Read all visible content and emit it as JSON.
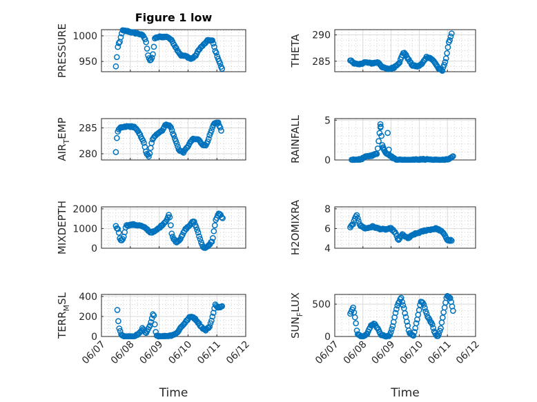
{
  "chart_data": [
    {
      "id": "pressure",
      "type": "scatter",
      "title": "Figure 1 low",
      "ylabel": "PRESSURE",
      "yticks": [
        950,
        1000
      ],
      "ylim": [
        930,
        1012
      ],
      "xticks": [],
      "x_start": "06/07",
      "x_end": "06/12",
      "anchors": [
        [
          7.5,
          940
        ],
        [
          7.58,
          985
        ],
        [
          7.62,
          984
        ],
        [
          7.72,
          1010
        ],
        [
          7.9,
          1009
        ],
        [
          8.1,
          1006
        ],
        [
          8.3,
          1004
        ],
        [
          8.45,
          1000
        ],
        [
          8.55,
          988
        ],
        [
          8.62,
          960
        ],
        [
          8.7,
          950
        ],
        [
          8.78,
          962
        ],
        [
          8.85,
          995
        ],
        [
          9.0,
          998
        ],
        [
          9.3,
          998
        ],
        [
          9.45,
          990
        ],
        [
          9.6,
          975
        ],
        [
          9.75,
          962
        ],
        [
          9.95,
          960
        ],
        [
          10.1,
          955
        ],
        [
          10.25,
          960
        ],
        [
          10.4,
          975
        ],
        [
          10.55,
          983
        ],
        [
          10.7,
          992
        ],
        [
          10.85,
          990
        ],
        [
          10.95,
          970
        ],
        [
          11.05,
          955
        ],
        [
          11.18,
          935
        ]
      ]
    },
    {
      "id": "theta",
      "type": "scatter",
      "title": "",
      "ylabel": "THETA",
      "yticks": [
        285,
        290
      ],
      "ylim": [
        283,
        291
      ],
      "xticks": [],
      "x_start": "06/07",
      "x_end": "06/12",
      "anchors": [
        [
          7.55,
          285.2
        ],
        [
          7.7,
          284.6
        ],
        [
          7.85,
          284.3
        ],
        [
          8.05,
          284.8
        ],
        [
          8.3,
          284.6
        ],
        [
          8.55,
          284.8
        ],
        [
          8.7,
          283.8
        ],
        [
          8.9,
          283.5
        ],
        [
          9.1,
          283.8
        ],
        [
          9.3,
          284.8
        ],
        [
          9.45,
          286.8
        ],
        [
          9.6,
          285.5
        ],
        [
          9.75,
          284.2
        ],
        [
          9.95,
          284.0
        ],
        [
          10.1,
          284.5
        ],
        [
          10.25,
          285.8
        ],
        [
          10.4,
          285.6
        ],
        [
          10.55,
          284.8
        ],
        [
          10.7,
          283.5
        ],
        [
          10.82,
          283.2
        ],
        [
          10.95,
          285.5
        ],
        [
          11.05,
          288.5
        ],
        [
          11.15,
          290.3
        ]
      ]
    },
    {
      "id": "air_temp",
      "type": "scatter",
      "title": "",
      "ylabel": "AIR",
      "ylabel_sub": "T",
      "ylabel_post": "EMP",
      "yticks": [
        280,
        285
      ],
      "ylim": [
        278.8,
        286.8
      ],
      "xticks": [],
      "x_start": "06/07",
      "x_end": "06/12",
      "anchors": [
        [
          7.5,
          280.4
        ],
        [
          7.55,
          284.2
        ],
        [
          7.65,
          285.0
        ],
        [
          7.9,
          285.3
        ],
        [
          8.15,
          285.2
        ],
        [
          8.3,
          284.0
        ],
        [
          8.45,
          282.5
        ],
        [
          8.55,
          280.2
        ],
        [
          8.65,
          279.3
        ],
        [
          8.75,
          282.5
        ],
        [
          8.9,
          283.8
        ],
        [
          9.1,
          284.5
        ],
        [
          9.25,
          285.8
        ],
        [
          9.4,
          285.2
        ],
        [
          9.55,
          282.8
        ],
        [
          9.7,
          280.6
        ],
        [
          9.85,
          280.3
        ],
        [
          10.0,
          281.5
        ],
        [
          10.15,
          282.8
        ],
        [
          10.35,
          282.8
        ],
        [
          10.5,
          281.8
        ],
        [
          10.62,
          281.6
        ],
        [
          10.75,
          283.5
        ],
        [
          10.9,
          285.8
        ],
        [
          11.05,
          286.0
        ],
        [
          11.15,
          284.5
        ]
      ]
    },
    {
      "id": "rainfall",
      "type": "scatter",
      "title": "",
      "ylabel": "RAINFALL",
      "yticks": [
        0,
        5
      ],
      "ylim": [
        0,
        5.2
      ],
      "xticks": [],
      "x_start": "06/07",
      "x_end": "06/12",
      "anchors": [
        [
          7.6,
          0
        ],
        [
          7.9,
          0.05
        ],
        [
          8.1,
          0.4
        ],
        [
          8.35,
          0.6
        ],
        [
          8.5,
          0.8
        ],
        [
          8.62,
          4.2
        ],
        [
          8.7,
          1.6
        ],
        [
          8.82,
          0.9
        ],
        [
          8.95,
          0.6
        ],
        [
          9.05,
          0.3
        ],
        [
          9.2,
          0.05
        ],
        [
          9.4,
          0
        ],
        [
          9.7,
          0
        ],
        [
          10.0,
          0.05
        ],
        [
          10.3,
          0.1
        ],
        [
          10.5,
          0
        ],
        [
          10.8,
          0
        ],
        [
          11.0,
          0.05
        ],
        [
          11.1,
          0.2
        ],
        [
          11.2,
          0.4
        ]
      ],
      "extras": [
        [
          8.62,
          4.5
        ],
        [
          8.63,
          4.2
        ],
        [
          8.72,
          1.6
        ],
        [
          8.88,
          3.4
        ],
        [
          8.92,
          1.3
        ]
      ]
    },
    {
      "id": "mixdepth",
      "type": "scatter",
      "title": "",
      "ylabel": "MIXDEPTH",
      "yticks": [
        0,
        1000,
        2000
      ],
      "ylim": [
        0,
        2100
      ],
      "xticks": [],
      "x_start": "06/07",
      "x_end": "06/12",
      "anchors": [
        [
          7.5,
          1100
        ],
        [
          7.58,
          950
        ],
        [
          7.65,
          400
        ],
        [
          7.75,
          450
        ],
        [
          7.85,
          1150
        ],
        [
          8.1,
          1200
        ],
        [
          8.35,
          1150
        ],
        [
          8.55,
          1000
        ],
        [
          8.7,
          800
        ],
        [
          8.85,
          850
        ],
        [
          9.05,
          1100
        ],
        [
          9.25,
          1400
        ],
        [
          9.35,
          1750
        ],
        [
          9.45,
          600
        ],
        [
          9.6,
          300
        ],
        [
          9.75,
          500
        ],
        [
          9.9,
          950
        ],
        [
          10.05,
          1150
        ],
        [
          10.2,
          1400
        ],
        [
          10.35,
          800
        ],
        [
          10.5,
          100
        ],
        [
          10.6,
          0
        ],
        [
          10.7,
          100
        ],
        [
          10.85,
          400
        ],
        [
          10.95,
          1400
        ],
        [
          11.08,
          1800
        ],
        [
          11.2,
          1500
        ]
      ]
    },
    {
      "id": "h2omixra",
      "type": "scatter",
      "title": "",
      "ylabel": "H2OMIXRA",
      "yticks": [
        4,
        6,
        8
      ],
      "ylim": [
        4,
        8.2
      ],
      "xticks": [],
      "x_start": "06/07",
      "x_end": "06/12",
      "anchors": [
        [
          7.55,
          6.1
        ],
        [
          7.65,
          6.5
        ],
        [
          7.78,
          7.4
        ],
        [
          7.9,
          6.3
        ],
        [
          8.1,
          6.0
        ],
        [
          8.35,
          6.2
        ],
        [
          8.55,
          6.0
        ],
        [
          8.75,
          5.9
        ],
        [
          9.0,
          6.0
        ],
        [
          9.15,
          5.6
        ],
        [
          9.25,
          4.8
        ],
        [
          9.4,
          5.4
        ],
        [
          9.6,
          5.0
        ],
        [
          9.8,
          5.4
        ],
        [
          10.0,
          5.6
        ],
        [
          10.2,
          5.8
        ],
        [
          10.4,
          5.9
        ],
        [
          10.6,
          6.0
        ],
        [
          10.75,
          5.8
        ],
        [
          10.9,
          5.4
        ],
        [
          11.0,
          4.8
        ],
        [
          11.15,
          4.8
        ]
      ]
    },
    {
      "id": "terrain",
      "type": "scatter",
      "title": "",
      "ylabel": "TERR",
      "ylabel_sub": "M",
      "ylabel_post": "SL",
      "yticks": [
        0,
        200,
        400
      ],
      "ylim": [
        0,
        420
      ],
      "xticks": [
        "06/07",
        "06/08",
        "06/09",
        "06/10",
        "06/11",
        "06/12"
      ],
      "xlabel": "Time",
      "x_start": "06/07",
      "x_end": "06/12",
      "anchors": [
        [
          7.55,
          260
        ],
        [
          7.6,
          95
        ],
        [
          7.7,
          5
        ],
        [
          7.9,
          0
        ],
        [
          8.15,
          0
        ],
        [
          8.3,
          30
        ],
        [
          8.42,
          80
        ],
        [
          8.55,
          30
        ],
        [
          8.7,
          120
        ],
        [
          8.8,
          240
        ],
        [
          8.9,
          10
        ],
        [
          9.1,
          0
        ],
        [
          9.4,
          10
        ],
        [
          9.6,
          30
        ],
        [
          9.75,
          90
        ],
        [
          9.9,
          140
        ],
        [
          10.05,
          190
        ],
        [
          10.15,
          200
        ],
        [
          10.3,
          160
        ],
        [
          10.45,
          100
        ],
        [
          10.6,
          60
        ],
        [
          10.75,
          100
        ],
        [
          10.85,
          200
        ],
        [
          10.95,
          320
        ],
        [
          11.05,
          290
        ],
        [
          11.18,
          300
        ]
      ]
    },
    {
      "id": "sunflux",
      "type": "scatter",
      "title": "",
      "ylabel": "SUN",
      "ylabel_sub": "F",
      "ylabel_post": "LUX",
      "yticks": [
        0,
        500
      ],
      "ylim": [
        0,
        650
      ],
      "xticks": [
        "06/07",
        "06/08",
        "06/09",
        "06/10",
        "06/11",
        "06/12"
      ],
      "xlabel": "Time",
      "x_start": "06/07",
      "x_end": "06/12",
      "anchors": [
        [
          7.55,
          350
        ],
        [
          7.65,
          440
        ],
        [
          7.72,
          300
        ],
        [
          7.8,
          50
        ],
        [
          7.95,
          0
        ],
        [
          8.15,
          40
        ],
        [
          8.3,
          180
        ],
        [
          8.42,
          200
        ],
        [
          8.55,
          100
        ],
        [
          8.65,
          30
        ],
        [
          8.8,
          0
        ],
        [
          8.95,
          10
        ],
        [
          9.05,
          150
        ],
        [
          9.2,
          450
        ],
        [
          9.35,
          600
        ],
        [
          9.45,
          450
        ],
        [
          9.55,
          250
        ],
        [
          9.65,
          50
        ],
        [
          9.8,
          20
        ],
        [
          9.95,
          300
        ],
        [
          10.05,
          550
        ],
        [
          10.15,
          500
        ],
        [
          10.3,
          300
        ],
        [
          10.45,
          200
        ],
        [
          10.55,
          50
        ],
        [
          10.65,
          0
        ],
        [
          10.75,
          100
        ],
        [
          10.88,
          400
        ],
        [
          10.98,
          640
        ],
        [
          11.1,
          600
        ],
        [
          11.2,
          400
        ]
      ]
    }
  ]
}
